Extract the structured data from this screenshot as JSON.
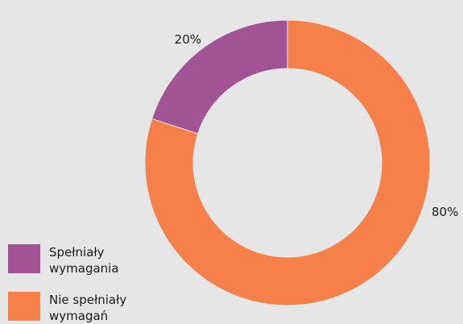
{
  "chart_data": {
    "type": "pie",
    "title": "",
    "slices": [
      {
        "label": "Spełniały wymagania",
        "label_lines": [
          "Spełniały",
          "wymagania"
        ],
        "value": 20,
        "value_label": "20%",
        "color": "#a25396"
      },
      {
        "label": "Nie spełniały wymagań",
        "label_lines": [
          "Nie spełniały",
          "wymagań"
        ],
        "value": 80,
        "value_label": "80%",
        "color": "#f5804a"
      }
    ],
    "donut": true,
    "legend_position": "bottom-left"
  },
  "colors": {
    "background": "#e6e6e7",
    "purple": "#a25396",
    "orange": "#f5804a"
  }
}
